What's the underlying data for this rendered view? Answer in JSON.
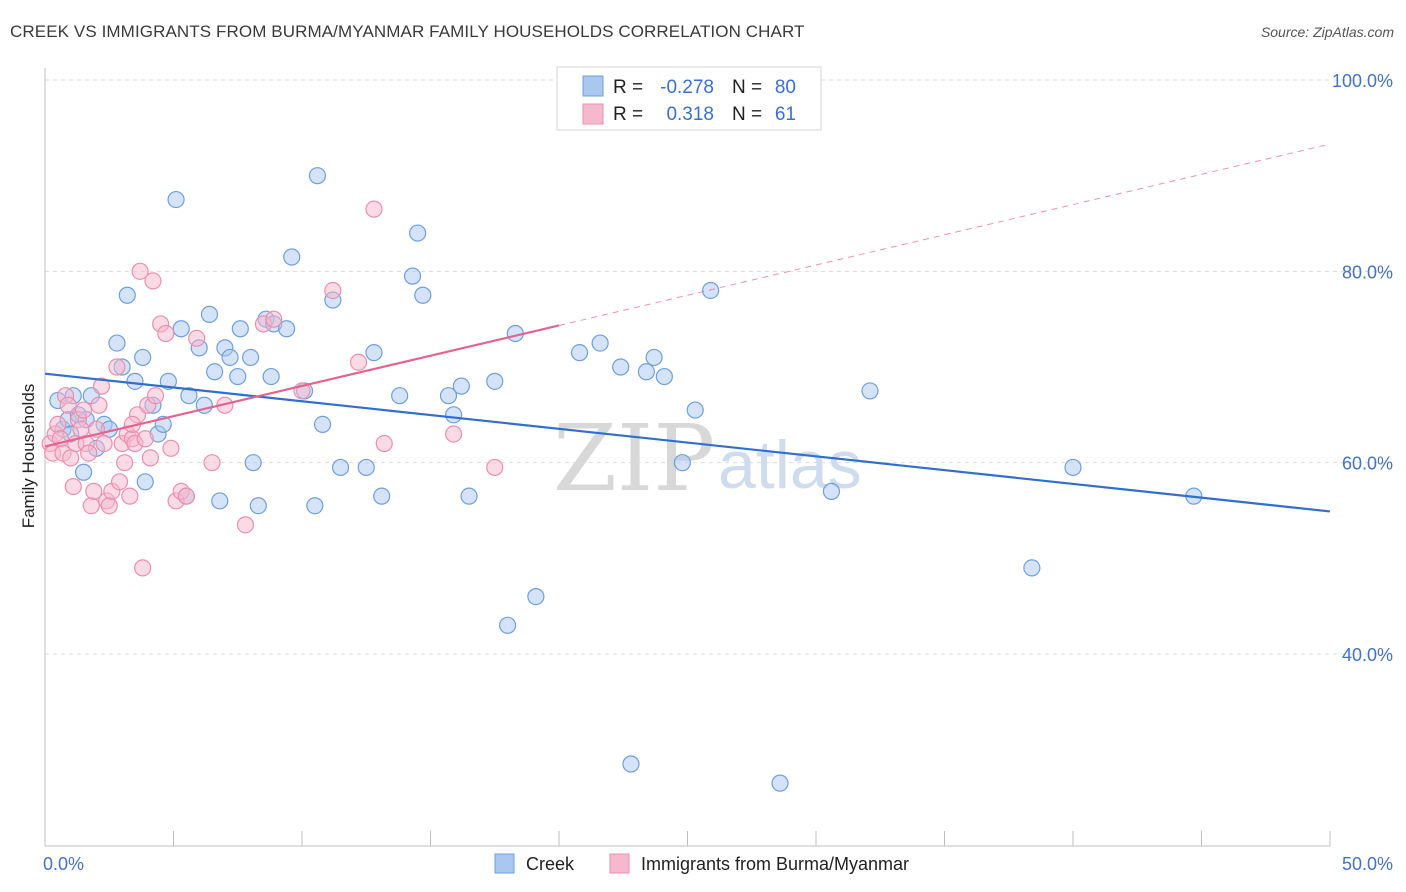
{
  "header": {
    "title": "CREEK VS IMMIGRANTS FROM BURMA/MYANMAR FAMILY HOUSEHOLDS CORRELATION CHART",
    "source": "Source: ZipAtlas.com"
  },
  "legend_box": {
    "rows": [
      {
        "r_label": "R =",
        "r_value": "-0.278",
        "n_label": "N =",
        "n_value": "80"
      },
      {
        "r_label": "R =",
        "r_value": "0.318",
        "n_label": "N =",
        "n_value": "61"
      }
    ]
  },
  "watermark": {
    "zip": "ZIP",
    "atlas": "atlas"
  },
  "colors": {
    "creek_fill": "#a9c7ef",
    "creek_stroke": "#6f9fe0",
    "creek_line": "#2f6fd0",
    "burma_fill": "#f6b8cc",
    "burma_stroke": "#ec8fae",
    "burma_line": "#e5648f",
    "tick_text": "#4472c4",
    "grid": "#dcdcdc"
  },
  "chart_data": {
    "type": "scatter",
    "title": "CREEK VS IMMIGRANTS FROM BURMA/MYANMAR FAMILY HOUSEHOLDS CORRELATION CHART",
    "xlabel": "",
    "ylabel": "Family Households",
    "xlim": [
      0,
      50
    ],
    "ylim": [
      20,
      103
    ],
    "x_tick_labels": [
      "0.0%",
      "50.0%"
    ],
    "y_ticks": [
      40,
      60,
      80,
      100
    ],
    "y_tick_labels": [
      "40.0%",
      "60.0%",
      "80.0%",
      "100.0%"
    ],
    "grid": "horizontal dashed",
    "legend_position": "top-center",
    "series": [
      {
        "name": "Creek",
        "r": -0.278,
        "n": 80,
        "trend": {
          "x0": 0,
          "y0": 69.3,
          "x1": 50,
          "y1": 54.9,
          "dashed_from": null
        },
        "points": [
          [
            0.5,
            66.5
          ],
          [
            0.7,
            63.5
          ],
          [
            0.9,
            64.5
          ],
          [
            1.0,
            63.0
          ],
          [
            1.1,
            67.0
          ],
          [
            1.3,
            65.0
          ],
          [
            1.5,
            59.0
          ],
          [
            1.6,
            64.5
          ],
          [
            1.8,
            67.0
          ],
          [
            2.0,
            61.5
          ],
          [
            2.3,
            64.0
          ],
          [
            2.5,
            63.5
          ],
          [
            2.8,
            72.5
          ],
          [
            3.0,
            70.0
          ],
          [
            3.2,
            77.5
          ],
          [
            3.5,
            68.5
          ],
          [
            3.8,
            71.0
          ],
          [
            3.9,
            58.0
          ],
          [
            4.2,
            66.0
          ],
          [
            4.4,
            63.0
          ],
          [
            4.6,
            64.0
          ],
          [
            4.8,
            68.5
          ],
          [
            5.1,
            87.5
          ],
          [
            5.3,
            74.0
          ],
          [
            5.5,
            56.5
          ],
          [
            5.6,
            67.0
          ],
          [
            6.0,
            72.0
          ],
          [
            6.2,
            66.0
          ],
          [
            6.4,
            75.5
          ],
          [
            6.6,
            69.5
          ],
          [
            6.8,
            56.0
          ],
          [
            7.0,
            72.0
          ],
          [
            7.2,
            71.0
          ],
          [
            7.5,
            69.0
          ],
          [
            7.6,
            74.0
          ],
          [
            8.0,
            71.0
          ],
          [
            8.1,
            60.0
          ],
          [
            8.3,
            55.5
          ],
          [
            8.6,
            75.0
          ],
          [
            8.8,
            69.0
          ],
          [
            8.9,
            74.5
          ],
          [
            9.4,
            74.0
          ],
          [
            9.6,
            81.5
          ],
          [
            10.1,
            67.5
          ],
          [
            10.5,
            55.5
          ],
          [
            10.6,
            90.0
          ],
          [
            10.8,
            64.0
          ],
          [
            11.2,
            77.0
          ],
          [
            11.5,
            59.5
          ],
          [
            12.5,
            59.5
          ],
          [
            12.8,
            71.5
          ],
          [
            13.1,
            56.5
          ],
          [
            13.8,
            67.0
          ],
          [
            14.3,
            79.5
          ],
          [
            14.5,
            84.0
          ],
          [
            14.7,
            77.5
          ],
          [
            15.7,
            67.0
          ],
          [
            15.9,
            65.0
          ],
          [
            16.2,
            68.0
          ],
          [
            16.5,
            56.5
          ],
          [
            17.5,
            68.5
          ],
          [
            18.0,
            43.0
          ],
          [
            18.3,
            73.5
          ],
          [
            19.1,
            46.0
          ],
          [
            20.8,
            71.5
          ],
          [
            21.6,
            72.5
          ],
          [
            22.4,
            70.0
          ],
          [
            22.8,
            28.5
          ],
          [
            23.4,
            69.5
          ],
          [
            23.7,
            71.0
          ],
          [
            24.1,
            69.0
          ],
          [
            24.8,
            60.0
          ],
          [
            25.3,
            65.5
          ],
          [
            25.9,
            78.0
          ],
          [
            28.6,
            26.5
          ],
          [
            30.6,
            57.0
          ],
          [
            32.1,
            67.5
          ],
          [
            38.4,
            49.0
          ],
          [
            40.0,
            59.5
          ],
          [
            44.7,
            56.5
          ]
        ]
      },
      {
        "name": "Immigrants from Burma/Myanmar",
        "r": 0.318,
        "n": 61,
        "trend": {
          "x0": 0,
          "y0": 61.7,
          "x1": 50,
          "y1": 93.3,
          "dashed_from": 20.0
        },
        "points": [
          [
            0.2,
            62.0
          ],
          [
            0.3,
            61.0
          ],
          [
            0.4,
            63.0
          ],
          [
            0.5,
            64.0
          ],
          [
            0.6,
            62.5
          ],
          [
            0.7,
            61.0
          ],
          [
            0.8,
            67.0
          ],
          [
            0.9,
            66.0
          ],
          [
            1.0,
            60.5
          ],
          [
            1.1,
            57.5
          ],
          [
            1.2,
            62.0
          ],
          [
            1.3,
            64.5
          ],
          [
            1.4,
            63.5
          ],
          [
            1.5,
            65.5
          ],
          [
            1.6,
            62.0
          ],
          [
            1.7,
            61.0
          ],
          [
            1.8,
            55.5
          ],
          [
            1.9,
            57.0
          ],
          [
            2.0,
            63.5
          ],
          [
            2.1,
            66.0
          ],
          [
            2.2,
            68.0
          ],
          [
            2.3,
            62.0
          ],
          [
            2.4,
            56.0
          ],
          [
            2.5,
            55.5
          ],
          [
            2.6,
            57.0
          ],
          [
            2.8,
            70.0
          ],
          [
            2.9,
            58.0
          ],
          [
            3.0,
            62.0
          ],
          [
            3.1,
            60.0
          ],
          [
            3.2,
            63.0
          ],
          [
            3.3,
            56.5
          ],
          [
            3.4,
            62.5
          ],
          [
            3.5,
            62.0
          ],
          [
            3.6,
            65.0
          ],
          [
            3.7,
            80.0
          ],
          [
            3.8,
            49.0
          ],
          [
            3.9,
            62.5
          ],
          [
            4.0,
            66.0
          ],
          [
            4.1,
            60.5
          ],
          [
            4.2,
            79.0
          ],
          [
            4.3,
            67.0
          ],
          [
            4.5,
            74.5
          ],
          [
            4.7,
            73.5
          ],
          [
            4.9,
            61.5
          ],
          [
            5.1,
            56.0
          ],
          [
            5.3,
            57.0
          ],
          [
            5.5,
            56.5
          ],
          [
            5.9,
            73.0
          ],
          [
            6.5,
            60.0
          ],
          [
            7.0,
            66.0
          ],
          [
            7.8,
            53.5
          ],
          [
            8.5,
            74.5
          ],
          [
            8.9,
            75.0
          ],
          [
            10.0,
            67.5
          ],
          [
            11.2,
            78.0
          ],
          [
            12.2,
            70.5
          ],
          [
            12.8,
            86.5
          ],
          [
            13.2,
            62.0
          ],
          [
            15.9,
            63.0
          ],
          [
            17.5,
            59.5
          ],
          [
            3.4,
            64.0
          ]
        ]
      }
    ]
  },
  "bottom_legend": {
    "items": [
      {
        "label": "Creek"
      },
      {
        "label": "Immigrants from Burma/Myanmar"
      }
    ]
  }
}
